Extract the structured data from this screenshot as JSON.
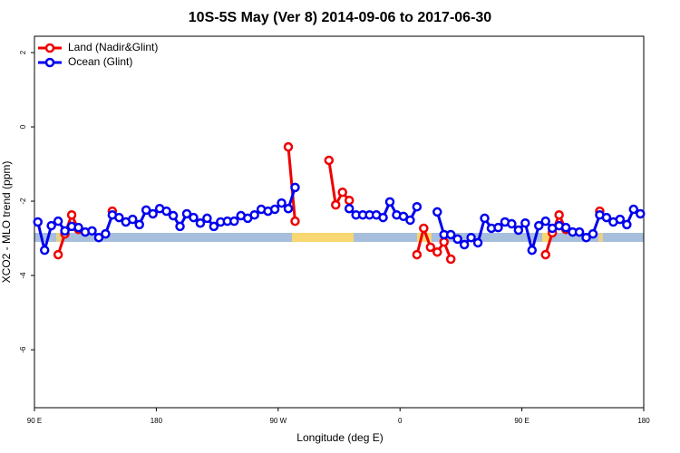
{
  "chart_data": {
    "type": "line",
    "title": "10S-5S May (Ver 8)   2014-09-06 to 2017-06-30",
    "xlabel": "Longitude (deg E)",
    "ylabel": "XCO2 - MLO trend (ppm)",
    "xlim": [
      90,
      540
    ],
    "xticks": [
      {
        "value": 90,
        "label": "90 E"
      },
      180,
      {
        "value": 270,
        "label": "90 W"
      },
      {
        "value": 360,
        "label": "0"
      },
      {
        "value": 450,
        "label": "90 E"
      },
      {
        "value": 540,
        "label": "180"
      }
    ],
    "ylim": [
      -7.56,
      2.44
    ],
    "yticks": [
      2,
      0,
      -2,
      -4,
      -6
    ],
    "legend": "top-left",
    "series": [
      {
        "name": "Land (Nadir&Glint)",
        "color": "#ee0000",
        "x": [
          107.5,
          112.5,
          117.5,
          122.5,
          null,
          147.5,
          null,
          277.5,
          282.5,
          null,
          307.5,
          312.5,
          317.5,
          322.5,
          null,
          372.5,
          377.5,
          382.5,
          387.5,
          392.5,
          397.5,
          null,
          467.5,
          472.5,
          477.5,
          482.5,
          null,
          507.5
        ],
        "values": [
          -3.44,
          -2.88,
          -2.37,
          -2.76,
          null,
          -2.27,
          null,
          -0.54,
          -2.54,
          null,
          -0.9,
          -2.1,
          -1.76,
          -1.98,
          null,
          -3.44,
          -2.73,
          -3.24,
          -3.37,
          -3.1,
          -3.56,
          null,
          -3.44,
          -2.85,
          -2.37,
          -2.76,
          null,
          -2.27
        ]
      },
      {
        "name": "Ocean (Glint)",
        "color": "#0000ee",
        "x": [
          92.5,
          97.5,
          102.5,
          107.5,
          112.5,
          117.5,
          122.5,
          127.5,
          132.5,
          137.5,
          142.5,
          147.5,
          152.5,
          157.5,
          162.5,
          167.5,
          172.5,
          177.5,
          182.5,
          187.5,
          192.5,
          197.5,
          202.5,
          207.5,
          212.5,
          217.5,
          222.5,
          227.5,
          232.5,
          237.5,
          242.5,
          247.5,
          252.5,
          257.5,
          262.5,
          267.5,
          272.5,
          277.5,
          282.5,
          287.5,
          292.5,
          297.5,
          302.5,
          307.5,
          312.5,
          317.5,
          322.5,
          327.5,
          332.5,
          337.5,
          342.5,
          347.5,
          352.5,
          357.5,
          362.5,
          367.5,
          372.5,
          377.5,
          382.5,
          387.5,
          392.5,
          397.5,
          402.5,
          407.5,
          412.5,
          417.5,
          422.5,
          427.5,
          432.5,
          437.5,
          442.5,
          447.5,
          452.5,
          457.5,
          462.5,
          467.5,
          472.5,
          477.5,
          482.5,
          487.5,
          492.5,
          497.5,
          502.5,
          507.5,
          512.5,
          517.5,
          522.5,
          527.5,
          532.5,
          537.5
        ],
        "values": [
          -2.56,
          -3.32,
          -2.66,
          -2.54,
          -2.8,
          -2.68,
          -2.71,
          -2.83,
          -2.8,
          -2.98,
          -2.88,
          -2.37,
          -2.44,
          -2.56,
          -2.49,
          -2.63,
          -2.24,
          -2.34,
          -2.2,
          -2.27,
          -2.39,
          -2.68,
          -2.34,
          -2.44,
          -2.59,
          -2.46,
          -2.68,
          -2.56,
          -2.54,
          -2.54,
          -2.39,
          -2.46,
          -2.37,
          -2.22,
          -2.27,
          -2.22,
          -2.05,
          -2.2,
          -1.63,
          null,
          null,
          null,
          null,
          null,
          null,
          null,
          -2.2,
          -2.37,
          -2.37,
          -2.37,
          -2.37,
          -2.44,
          -2.02,
          -2.37,
          -2.41,
          -2.51,
          -2.15,
          null,
          null,
          -2.29,
          -2.9,
          -2.9,
          -3.02,
          -3.17,
          -2.98,
          -3.12,
          -2.46,
          -2.73,
          -2.71,
          -2.56,
          -2.61,
          -2.78,
          -2.59,
          -3.32,
          -2.66,
          -2.54,
          -2.73,
          -2.66,
          -2.71,
          -2.83,
          -2.83,
          -2.98,
          -2.88,
          -2.37,
          -2.44,
          -2.56,
          -2.49,
          -2.63,
          -2.22,
          -2.34
        ]
      }
    ]
  }
}
